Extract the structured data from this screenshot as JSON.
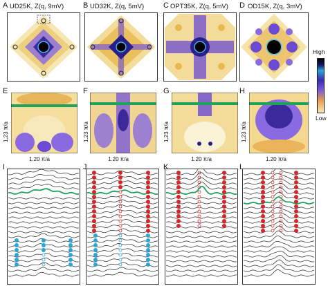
{
  "panels_top": [
    {
      "letter": "A",
      "title": "UD25K, Z(q, 9mV)"
    },
    {
      "letter": "B",
      "title": "UD32K, Z(q, 5mV)"
    },
    {
      "letter": "C",
      "title": "OPT35K, Z(q, 5mV)"
    },
    {
      "letter": "D",
      "title": "OD15K, Z(q, 3mV)"
    }
  ],
  "panels_mid": [
    {
      "letter": "E",
      "xlabel": "1.20 π/a",
      "ylabel": "1.23 π/a"
    },
    {
      "letter": "F",
      "xlabel": "1.20 π/a",
      "ylabel": "1.23 π/a"
    },
    {
      "letter": "G",
      "xlabel": "1.20 π/a",
      "ylabel": "1.23 π/a"
    },
    {
      "letter": "H",
      "xlabel": "1.20 π/a",
      "ylabel": "1.23 π/a"
    }
  ],
  "panels_bot": [
    {
      "letter": "I"
    },
    {
      "letter": "J"
    },
    {
      "letter": "K"
    },
    {
      "letter": "L"
    }
  ],
  "colorbar": {
    "high": "High",
    "low": "Low"
  },
  "colors": {
    "dark": "#1a0f3c",
    "purple": "#6a4bd8",
    "light": "#f7e9b8",
    "orange": "#f0b24a",
    "green": "#1ea35a",
    "red": "#d7262b",
    "cyan": "#2aa6d6"
  }
}
